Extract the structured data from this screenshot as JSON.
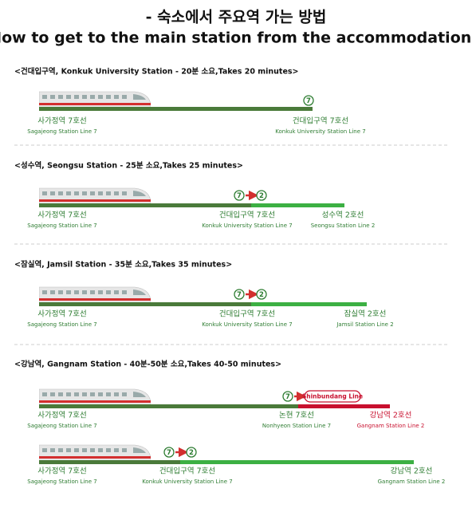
{
  "title": [
    "- 숙소에서 주요역 가는 방법",
    "How to get to the main station from the accommodation -"
  ],
  "routes": [
    {
      "heading": "<건대입구역, Konkuk University Station - 20분 소요,Takes 20 minutes>",
      "rows": [
        {
          "badges": [
            "7"
          ],
          "stations": [
            {
              "ko": "사가정역 7호선",
              "en": "Sagajeong Station Line 7"
            },
            {
              "ko": "건대입구역 7호선",
              "en": "Konkuk University Station Line 7"
            }
          ]
        }
      ]
    },
    {
      "heading": "<성수역, Seongsu Station - 25분 소요,Takes 25 minutes>",
      "rows": [
        {
          "badges": [
            "7",
            "2"
          ],
          "stations": [
            {
              "ko": "사가정역 7호선",
              "en": "Sagajeong Station Line 7"
            },
            {
              "ko": "건대입구역 7호선",
              "en": "Konkuk University Station Line 7"
            },
            {
              "ko": "성수역 2호선",
              "en": "Seongsu Station Line 2"
            }
          ]
        }
      ]
    },
    {
      "heading": "<잠실역, Jamsil Station - 35분 소요,Takes 35 minutes>",
      "rows": [
        {
          "badges": [
            "7",
            "2"
          ],
          "stations": [
            {
              "ko": "사가정역 7호선",
              "en": "Sagajeong Station Line 7"
            },
            {
              "ko": "건대입구역 7호선",
              "en": "Konkuk University Station Line 7"
            },
            {
              "ko": "잠실역 2호선",
              "en": "Jamsil Station Line 2"
            }
          ]
        }
      ]
    },
    {
      "heading": "<강남역, Gangnam Station - 40분-50분 소요,Takes 40-50 minutes>",
      "rows": [
        {
          "badges": [
            "7",
            "Shinbundang Line"
          ],
          "stations": [
            {
              "ko": "사가정역 7호선",
              "en": "Sagajeong Station Line 7"
            },
            {
              "ko": "논현 7호선",
              "en": "Nonhyeon Station Line 7"
            },
            {
              "ko": "강남역 2호선",
              "en": "Gangnam Station Line 2"
            }
          ]
        },
        {
          "badges": [
            "7",
            "2"
          ],
          "stations": [
            {
              "ko": "사가정역 7호선",
              "en": "Sagajeong Station Line 7"
            },
            {
              "ko": "건대입구역 7호선",
              "en": "Konkuk University Station Line 7"
            },
            {
              "ko": "강남역 2호선",
              "en": "Gangnam Station Line 2"
            }
          ]
        }
      ]
    }
  ]
}
